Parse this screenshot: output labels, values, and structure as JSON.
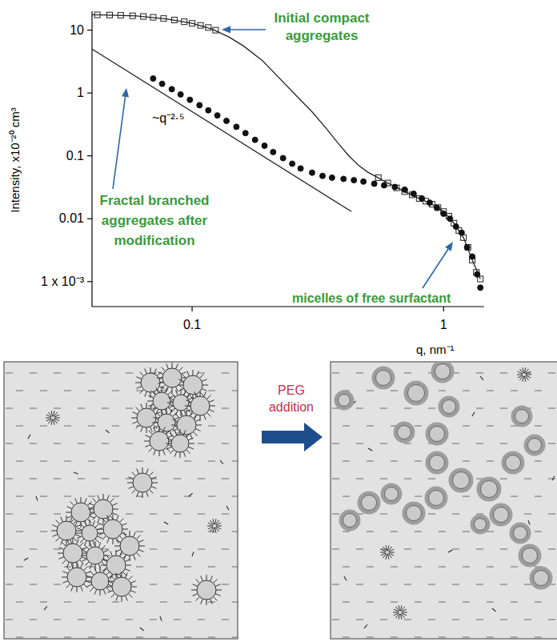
{
  "chart_data": {
    "type": "scatter",
    "log": true,
    "grid": false,
    "x_label": "q, nm⁻¹",
    "y_label": "Intensity, x10⁻²⁰ cm³",
    "xlim": [
      0.04,
      1.45
    ],
    "ylim": [
      0.0004,
      20
    ],
    "xticks": [
      0.1,
      1
    ],
    "yticks": [
      {
        "value": 0.001,
        "label": "1 x 10⁻³"
      },
      0.01,
      0.1,
      1,
      10
    ],
    "series": [
      {
        "type": "scatter",
        "marker": "square-open",
        "color": "#222222",
        "x": [
          0.042,
          0.047,
          0.052,
          0.058,
          0.064,
          0.07,
          0.077,
          0.085,
          0.093,
          0.1,
          0.108,
          0.116,
          0.124,
          0.55,
          0.6,
          0.65,
          0.7,
          0.75,
          0.8,
          0.85,
          0.9,
          0.95,
          1.0,
          1.05,
          1.1,
          1.15,
          1.2,
          1.25,
          1.3,
          1.35,
          1.4
        ],
        "values": [
          17.5,
          17.4,
          17.2,
          16.9,
          16.5,
          16.0,
          15.3,
          14.5,
          13.6,
          12.8,
          11.9,
          11.0,
          10.0,
          0.045,
          0.037,
          0.031,
          0.027,
          0.024,
          0.021,
          0.019,
          0.017,
          0.015,
          0.013,
          0.011,
          0.0085,
          0.0065,
          0.005,
          0.0035,
          0.0022,
          0.0014,
          0.0011
        ]
      },
      {
        "type": "line",
        "line_style": "solid",
        "color": "#222222",
        "x": [
          0.04,
          0.06,
          0.08,
          0.1,
          0.12,
          0.14,
          0.16,
          0.19,
          0.22,
          0.26,
          0.3,
          0.34,
          0.38,
          0.42,
          0.46,
          0.5,
          0.6,
          0.7,
          0.8,
          0.9,
          1.0,
          1.1,
          1.2,
          1.3,
          1.4
        ],
        "values": [
          17.6,
          16.8,
          15.0,
          12.8,
          10.4,
          7.8,
          5.6,
          3.3,
          1.8,
          0.9,
          0.5,
          0.28,
          0.16,
          0.1,
          0.07,
          0.055,
          0.037,
          0.027,
          0.021,
          0.017,
          0.013,
          0.0085,
          0.005,
          0.0022,
          0.0011
        ]
      },
      {
        "type": "scatter",
        "marker": "circle",
        "color": "#111111",
        "x": [
          0.07,
          0.076,
          0.083,
          0.09,
          0.098,
          0.107,
          0.116,
          0.126,
          0.137,
          0.15,
          0.163,
          0.178,
          0.194,
          0.21,
          0.23,
          0.25,
          0.27,
          0.3,
          0.33,
          0.36,
          0.4,
          0.44,
          0.48,
          0.53,
          0.58,
          0.64,
          0.7,
          0.76,
          0.82,
          0.88,
          0.94,
          1.0,
          1.06,
          1.12,
          1.18,
          1.24,
          1.3,
          1.36,
          1.4
        ],
        "values": [
          1.7,
          1.4,
          1.15,
          0.95,
          0.78,
          0.64,
          0.53,
          0.44,
          0.36,
          0.29,
          0.23,
          0.18,
          0.145,
          0.115,
          0.092,
          0.075,
          0.063,
          0.054,
          0.048,
          0.045,
          0.043,
          0.041,
          0.039,
          0.036,
          0.034,
          0.032,
          0.029,
          0.025,
          0.021,
          0.018,
          0.015,
          0.012,
          0.01,
          0.0075,
          0.006,
          0.0035,
          0.0025,
          0.0013,
          0.0008
        ]
      },
      {
        "type": "line",
        "line_style": "solid",
        "color": "#222222",
        "x": [
          0.04,
          0.43
        ],
        "values": [
          5.0,
          0.013
        ]
      }
    ],
    "annotations": [
      {
        "text": [
          "Initial compact",
          "aggregates"
        ]
      },
      {
        "text": [
          "Fractal branched",
          "aggregates after",
          "modification"
        ]
      },
      {
        "text": [
          "~q⁻²·⁵"
        ]
      },
      {
        "text": [
          "micelles of free surfactant"
        ]
      }
    ]
  },
  "diagram": {
    "arrow_label": "PEG addition"
  }
}
